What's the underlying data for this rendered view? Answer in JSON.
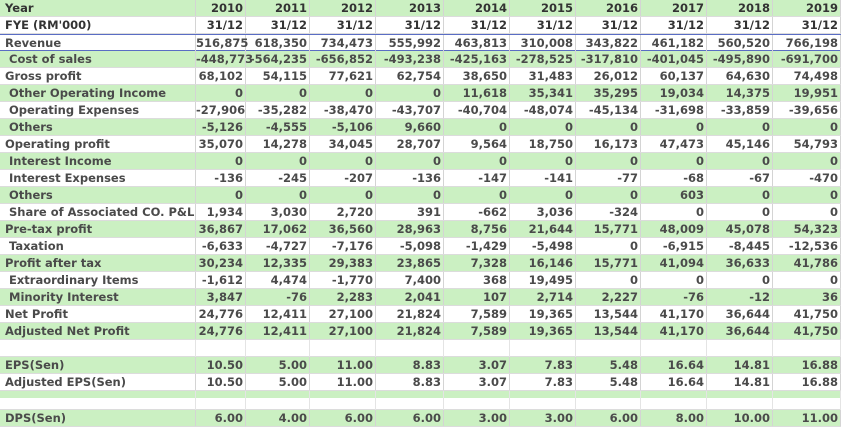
{
  "table": {
    "header": {
      "label": "Year",
      "years": [
        "2010",
        "2011",
        "2012",
        "2013",
        "2014",
        "2015",
        "2016",
        "2017",
        "2018",
        "2019"
      ]
    },
    "subheader": {
      "label": "FYE (RM'000)",
      "dates": [
        "31/12",
        "31/12",
        "31/12",
        "31/12",
        "31/12",
        "31/12",
        "31/12",
        "31/12",
        "31/12",
        "31/12"
      ]
    },
    "rows": [
      {
        "label": "Revenue",
        "values": [
          "516,875",
          "618,350",
          "734,473",
          "555,992",
          "463,813",
          "310,008",
          "343,822",
          "461,182",
          "560,520",
          "766,198"
        ]
      },
      {
        "label": "Cost of sales",
        "values": [
          "-448,773",
          "-564,235",
          "-656,852",
          "-493,238",
          "-425,163",
          "-278,525",
          "-317,810",
          "-401,045",
          "-495,890",
          "-691,700"
        ]
      },
      {
        "label": "Gross profit",
        "values": [
          "68,102",
          "54,115",
          "77,621",
          "62,754",
          "38,650",
          "31,483",
          "26,012",
          "60,137",
          "64,630",
          "74,498"
        ]
      },
      {
        "label": "Other Operating Income",
        "values": [
          "0",
          "0",
          "0",
          "0",
          "11,618",
          "35,341",
          "35,295",
          "19,034",
          "14,375",
          "19,951"
        ]
      },
      {
        "label": "Operating Expenses",
        "values": [
          "-27,906",
          "-35,282",
          "-38,470",
          "-43,707",
          "-40,704",
          "-48,074",
          "-45,134",
          "-31,698",
          "-33,859",
          "-39,656"
        ]
      },
      {
        "label": "Others",
        "values": [
          "-5,126",
          "-4,555",
          "-5,106",
          "9,660",
          "0",
          "0",
          "0",
          "0",
          "0",
          "0"
        ]
      },
      {
        "label": "Operating profit",
        "values": [
          "35,070",
          "14,278",
          "34,045",
          "28,707",
          "9,564",
          "18,750",
          "16,173",
          "47,473",
          "45,146",
          "54,793"
        ]
      },
      {
        "label": "Interest Income",
        "values": [
          "0",
          "0",
          "0",
          "0",
          "0",
          "0",
          "0",
          "0",
          "0",
          "0"
        ]
      },
      {
        "label": "Interest Expenses",
        "values": [
          "-136",
          "-245",
          "-207",
          "-136",
          "-147",
          "-141",
          "-77",
          "-68",
          "-67",
          "-470"
        ]
      },
      {
        "label": "Others",
        "values": [
          "0",
          "0",
          "0",
          "0",
          "0",
          "0",
          "0",
          "603",
          "0",
          "0"
        ]
      },
      {
        "label": "Share of Associated CO. P&L",
        "values": [
          "1,934",
          "3,030",
          "2,720",
          "391",
          "-662",
          "3,036",
          "-324",
          "0",
          "0",
          "0"
        ]
      },
      {
        "label": "Pre-tax profit",
        "values": [
          "36,867",
          "17,062",
          "36,560",
          "28,963",
          "8,756",
          "21,644",
          "15,771",
          "48,009",
          "45,078",
          "54,323"
        ]
      },
      {
        "label": "Taxation",
        "values": [
          "-6,633",
          "-4,727",
          "-7,176",
          "-5,098",
          "-1,429",
          "-5,498",
          "0",
          "-6,915",
          "-8,445",
          "-12,536"
        ]
      },
      {
        "label": "Profit after tax",
        "values": [
          "30,234",
          "12,335",
          "29,383",
          "23,865",
          "7,328",
          "16,146",
          "15,771",
          "41,094",
          "36,633",
          "41,786"
        ]
      },
      {
        "label": "Extraordinary Items",
        "values": [
          "-1,612",
          "4,474",
          "-1,770",
          "7,400",
          "368",
          "19,495",
          "0",
          "0",
          "0",
          "0"
        ]
      },
      {
        "label": "Minority Interest",
        "values": [
          "3,847",
          "-76",
          "2,283",
          "2,041",
          "107",
          "2,714",
          "2,227",
          "-76",
          "-12",
          "36"
        ]
      },
      {
        "label": "Net Profit",
        "values": [
          "24,776",
          "12,411",
          "27,100",
          "21,824",
          "7,589",
          "19,365",
          "13,544",
          "41,170",
          "36,644",
          "41,750"
        ]
      },
      {
        "label": "Adjusted Net Profit",
        "values": [
          "24,776",
          "12,411",
          "27,100",
          "21,824",
          "7,589",
          "19,365",
          "13,544",
          "41,170",
          "36,644",
          "41,750"
        ]
      }
    ],
    "eps": {
      "label": "EPS(Sen)",
      "values": [
        "10.50",
        "5.00",
        "11.00",
        "8.83",
        "3.07",
        "7.83",
        "5.48",
        "16.64",
        "14.81",
        "16.88"
      ]
    },
    "adjusted_eps": {
      "label": "Adjusted EPS(Sen)",
      "values": [
        "10.50",
        "5.00",
        "11.00",
        "8.83",
        "3.07",
        "7.83",
        "5.48",
        "16.64",
        "14.81",
        "16.88"
      ]
    },
    "dps": {
      "label": "DPS(Sen)",
      "values": [
        "6.00",
        "4.00",
        "6.00",
        "6.00",
        "3.00",
        "3.00",
        "6.00",
        "8.00",
        "10.00",
        "11.00"
      ]
    }
  },
  "colors": {
    "row_green": "#cbf0c2",
    "row_white": "#ffffff",
    "text": "#4a4a4a",
    "revenue_border": "#5a6dc4"
  }
}
